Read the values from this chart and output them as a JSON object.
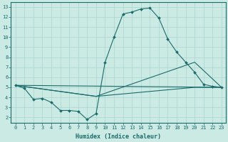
{
  "xlabel": "Humidex (Indice chaleur)",
  "background_color": "#cceae4",
  "grid_color": "#aad4ce",
  "line_color": "#1a6b6b",
  "xlim": [
    -0.5,
    23.5
  ],
  "ylim": [
    1.5,
    13.5
  ],
  "yticks": [
    2,
    3,
    4,
    5,
    6,
    7,
    8,
    9,
    10,
    11,
    12,
    13
  ],
  "xticks": [
    0,
    1,
    2,
    3,
    4,
    5,
    6,
    7,
    8,
    9,
    10,
    11,
    12,
    13,
    14,
    15,
    16,
    17,
    18,
    19,
    20,
    21,
    22,
    23
  ],
  "main_line": {
    "x": [
      0,
      1,
      2,
      3,
      4,
      5,
      6,
      7,
      8,
      9,
      10,
      11,
      12,
      13,
      14,
      15,
      16,
      17,
      18,
      19,
      20,
      21,
      22,
      23
    ],
    "y": [
      5.2,
      4.9,
      3.8,
      3.9,
      3.5,
      2.7,
      2.7,
      2.6,
      1.8,
      2.4,
      7.5,
      10.0,
      12.3,
      12.5,
      12.8,
      12.9,
      11.9,
      9.8,
      8.5,
      7.5,
      6.5,
      5.3,
      5.1,
      5.0
    ]
  },
  "extra_lines": [
    {
      "x": [
        0,
        23
      ],
      "y": [
        5.2,
        5.0
      ]
    },
    {
      "x": [
        0,
        9,
        20,
        23
      ],
      "y": [
        5.2,
        4.1,
        7.5,
        5.0
      ]
    },
    {
      "x": [
        0,
        9,
        20,
        23
      ],
      "y": [
        5.2,
        4.1,
        5.0,
        5.0
      ]
    }
  ],
  "tick_fontsize": 5.0,
  "xlabel_fontsize": 6.0
}
